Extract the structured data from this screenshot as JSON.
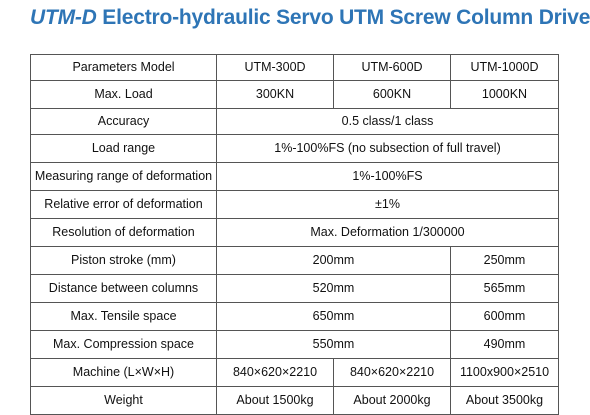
{
  "title": {
    "model": "UTM-D",
    "text": "Electro-hydraulic Servo UTM Screw Column Drive"
  },
  "table": {
    "header": {
      "label": "Parameters Model",
      "models": [
        "UTM-300D",
        "UTM-600D",
        "UTM-1000D"
      ]
    },
    "rows": [
      {
        "label": "Max. Load",
        "cells": [
          "300KN",
          "600KN",
          "1000KN"
        ]
      },
      {
        "label": "Accuracy",
        "merged": "0.5 class/1 class"
      },
      {
        "label": "Load range",
        "merged": "1%-100%FS (no subsection of full travel)"
      },
      {
        "label": "Measuring range of deformation",
        "merged": "1%-100%FS"
      },
      {
        "label": "Relative error of deformation",
        "merged": "±1%"
      },
      {
        "label": "Resolution of deformation",
        "merged": "Max. Deformation 1/300000"
      },
      {
        "label": "Piston stroke (mm)",
        "pair": [
          "200mm",
          "250mm"
        ]
      },
      {
        "label": "Distance between columns",
        "pair": [
          "520mm",
          "565mm"
        ]
      },
      {
        "label": "Max. Tensile space",
        "pair": [
          "650mm",
          "600mm"
        ]
      },
      {
        "label": "Max. Compression space",
        "pair": [
          "550mm",
          "490mm"
        ]
      },
      {
        "label": "Machine (L×W×H)",
        "cells": [
          "840×620×2210",
          "840×620×2210",
          "1100x900×2510"
        ]
      },
      {
        "label": "Weight",
        "cells": [
          "About 1500kg",
          "About 2000kg",
          "About 3500kg"
        ]
      }
    ]
  }
}
